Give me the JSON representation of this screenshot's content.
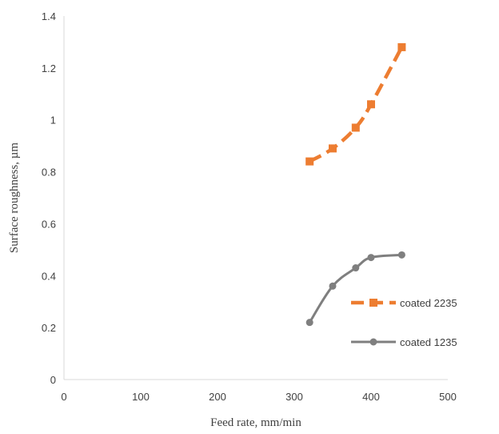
{
  "chart_data": {
    "type": "line",
    "title": "",
    "xlabel": "Feed rate, mm/min",
    "ylabel": "Surface roughness, µm",
    "xlim": [
      0,
      500
    ],
    "ylim": [
      0,
      1.4
    ],
    "x_ticks": [
      "0",
      "100",
      "200",
      "300",
      "400",
      "500"
    ],
    "y_ticks": [
      "0",
      "0.2",
      "0.4",
      "0.6",
      "0.8",
      "1",
      "1.2",
      "1.4"
    ],
    "grid": false,
    "legend_position": "right",
    "series": [
      {
        "name": "coated 2235",
        "color": "#ED7D31",
        "line_style": "dashed",
        "marker": "square",
        "x": [
          320,
          350,
          380,
          400,
          440
        ],
        "y": [
          0.84,
          0.89,
          0.97,
          1.06,
          1.28
        ]
      },
      {
        "name": "coated 1235",
        "color": "#7F7F7F",
        "line_style": "solid",
        "marker": "circle",
        "x": [
          320,
          350,
          380,
          400,
          440
        ],
        "y": [
          0.22,
          0.36,
          0.43,
          0.47,
          0.48
        ]
      }
    ]
  }
}
